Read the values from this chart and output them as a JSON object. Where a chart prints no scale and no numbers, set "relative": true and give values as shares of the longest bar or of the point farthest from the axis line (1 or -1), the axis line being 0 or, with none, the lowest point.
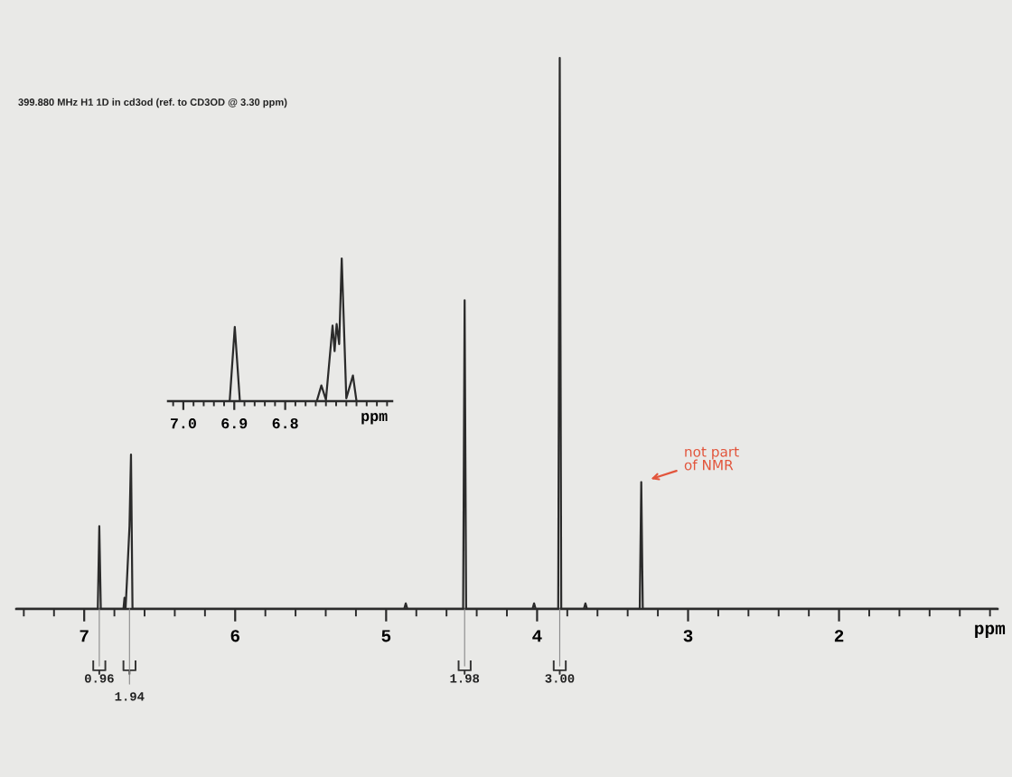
{
  "chart_data": [
    {
      "type": "line",
      "title": "399.880 MHz H1 1D in cd3od (ref. to CD3OD @ 3.30 ppm)",
      "xlabel": "ppm",
      "relative": true,
      "line_style": "solid",
      "color": "#2b2b2b",
      "x": [
        7.45,
        6.91,
        6.9,
        6.89,
        6.74,
        6.733,
        6.726,
        6.717,
        6.7,
        6.69,
        6.68,
        4.88,
        4.87,
        4.86,
        4.49,
        4.48,
        4.47,
        4.03,
        4.02,
        4.01,
        3.86,
        3.85,
        3.84,
        3.69,
        3.68,
        3.67,
        3.32,
        3.31,
        3.3,
        0.95
      ],
      "values": [
        0,
        0,
        0.15,
        0,
        0,
        0.02,
        0,
        0.05,
        0.15,
        0.28,
        0,
        0,
        0.01,
        0,
        0,
        0.56,
        0,
        0,
        0.01,
        0,
        0,
        1.0,
        0,
        0,
        0.01,
        0,
        0,
        0.23,
        0,
        0
      ],
      "xlim": [
        7.45,
        0.95
      ],
      "xticks": [
        {
          "value": 7.4,
          "label": null
        },
        {
          "value": 7.2,
          "label": null
        },
        7,
        {
          "value": 6.8,
          "label": null
        },
        {
          "value": 6.6,
          "label": null
        },
        {
          "value": 6.4,
          "label": null
        },
        {
          "value": 6.2,
          "label": null
        },
        6,
        {
          "value": 5.8,
          "label": null
        },
        {
          "value": 5.6,
          "label": null
        },
        {
          "value": 5.4,
          "label": null
        },
        {
          "value": 5.2,
          "label": null
        },
        5,
        {
          "value": 4.8,
          "label": null
        },
        {
          "value": 4.6,
          "label": null
        },
        {
          "value": 4.4,
          "label": null
        },
        {
          "value": 4.2,
          "label": null
        },
        4,
        {
          "value": 3.8,
          "label": null
        },
        {
          "value": 3.6,
          "label": null
        },
        {
          "value": 3.4,
          "label": null
        },
        {
          "value": 3.2,
          "label": null
        },
        3,
        {
          "value": 2.8,
          "label": null
        },
        {
          "value": 2.6,
          "label": null
        },
        {
          "value": 2.4,
          "label": null
        },
        {
          "value": 2.2,
          "label": null
        },
        2,
        {
          "value": 1.8,
          "label": null
        },
        {
          "value": 1.6,
          "label": null
        },
        {
          "value": 1.4,
          "label": null
        },
        {
          "value": 1.2,
          "label": null
        },
        {
          "value": 1,
          "label": null
        }
      ],
      "annotations": [
        {
          "text": "0.96",
          "x": 6.9,
          "y": 0
        },
        {
          "text": "1.94",
          "x": 6.7,
          "y": 0
        },
        {
          "text": "1.98",
          "x": 4.48,
          "y": 0
        },
        {
          "text": "3.00",
          "x": 3.85,
          "y": 0
        },
        {
          "text": "not part\nof NMR",
          "x": 3.31,
          "y": 0.23
        }
      ]
    },
    {
      "type": "line",
      "xlabel": "ppm",
      "relative": true,
      "line_style": "solid",
      "color": "#2b2b2b",
      "x": [
        7.03,
        6.909,
        6.899,
        6.889,
        6.738,
        6.729,
        6.72,
        6.707,
        6.703,
        6.699,
        6.694,
        6.689,
        6.68,
        6.667,
        6.66,
        6.59
      ],
      "values": [
        0,
        0,
        0.52,
        0,
        0,
        0.11,
        0.01,
        0.53,
        0.35,
        0.54,
        0.4,
        1.0,
        0.02,
        0.18,
        0,
        0
      ],
      "xlim": [
        7.03,
        6.59
      ],
      "xticks": [
        {
          "value": 7.02,
          "label": null
        },
        {
          "value": 7.0,
          "label": "7.0"
        },
        {
          "value": 6.98,
          "label": null
        },
        {
          "value": 6.96,
          "label": null
        },
        {
          "value": 6.94,
          "label": null
        },
        {
          "value": 6.92,
          "label": null
        },
        {
          "value": 6.9,
          "label": "6.9"
        },
        {
          "value": 6.88,
          "label": null
        },
        {
          "value": 6.86,
          "label": null
        },
        {
          "value": 6.84,
          "label": null
        },
        {
          "value": 6.82,
          "label": null
        },
        {
          "value": 6.8,
          "label": "6.8"
        },
        {
          "value": 6.78,
          "label": null
        },
        {
          "value": 6.76,
          "label": null
        },
        {
          "value": 6.74,
          "label": null
        },
        {
          "value": 6.72,
          "label": null
        },
        {
          "value": 6.7,
          "label": null
        },
        {
          "value": 6.68,
          "label": null
        },
        {
          "value": 6.66,
          "label": null
        },
        {
          "value": 6.64,
          "label": null
        },
        {
          "value": 6.62,
          "label": null
        },
        {
          "value": 6.6,
          "label": null
        }
      ]
    }
  ]
}
